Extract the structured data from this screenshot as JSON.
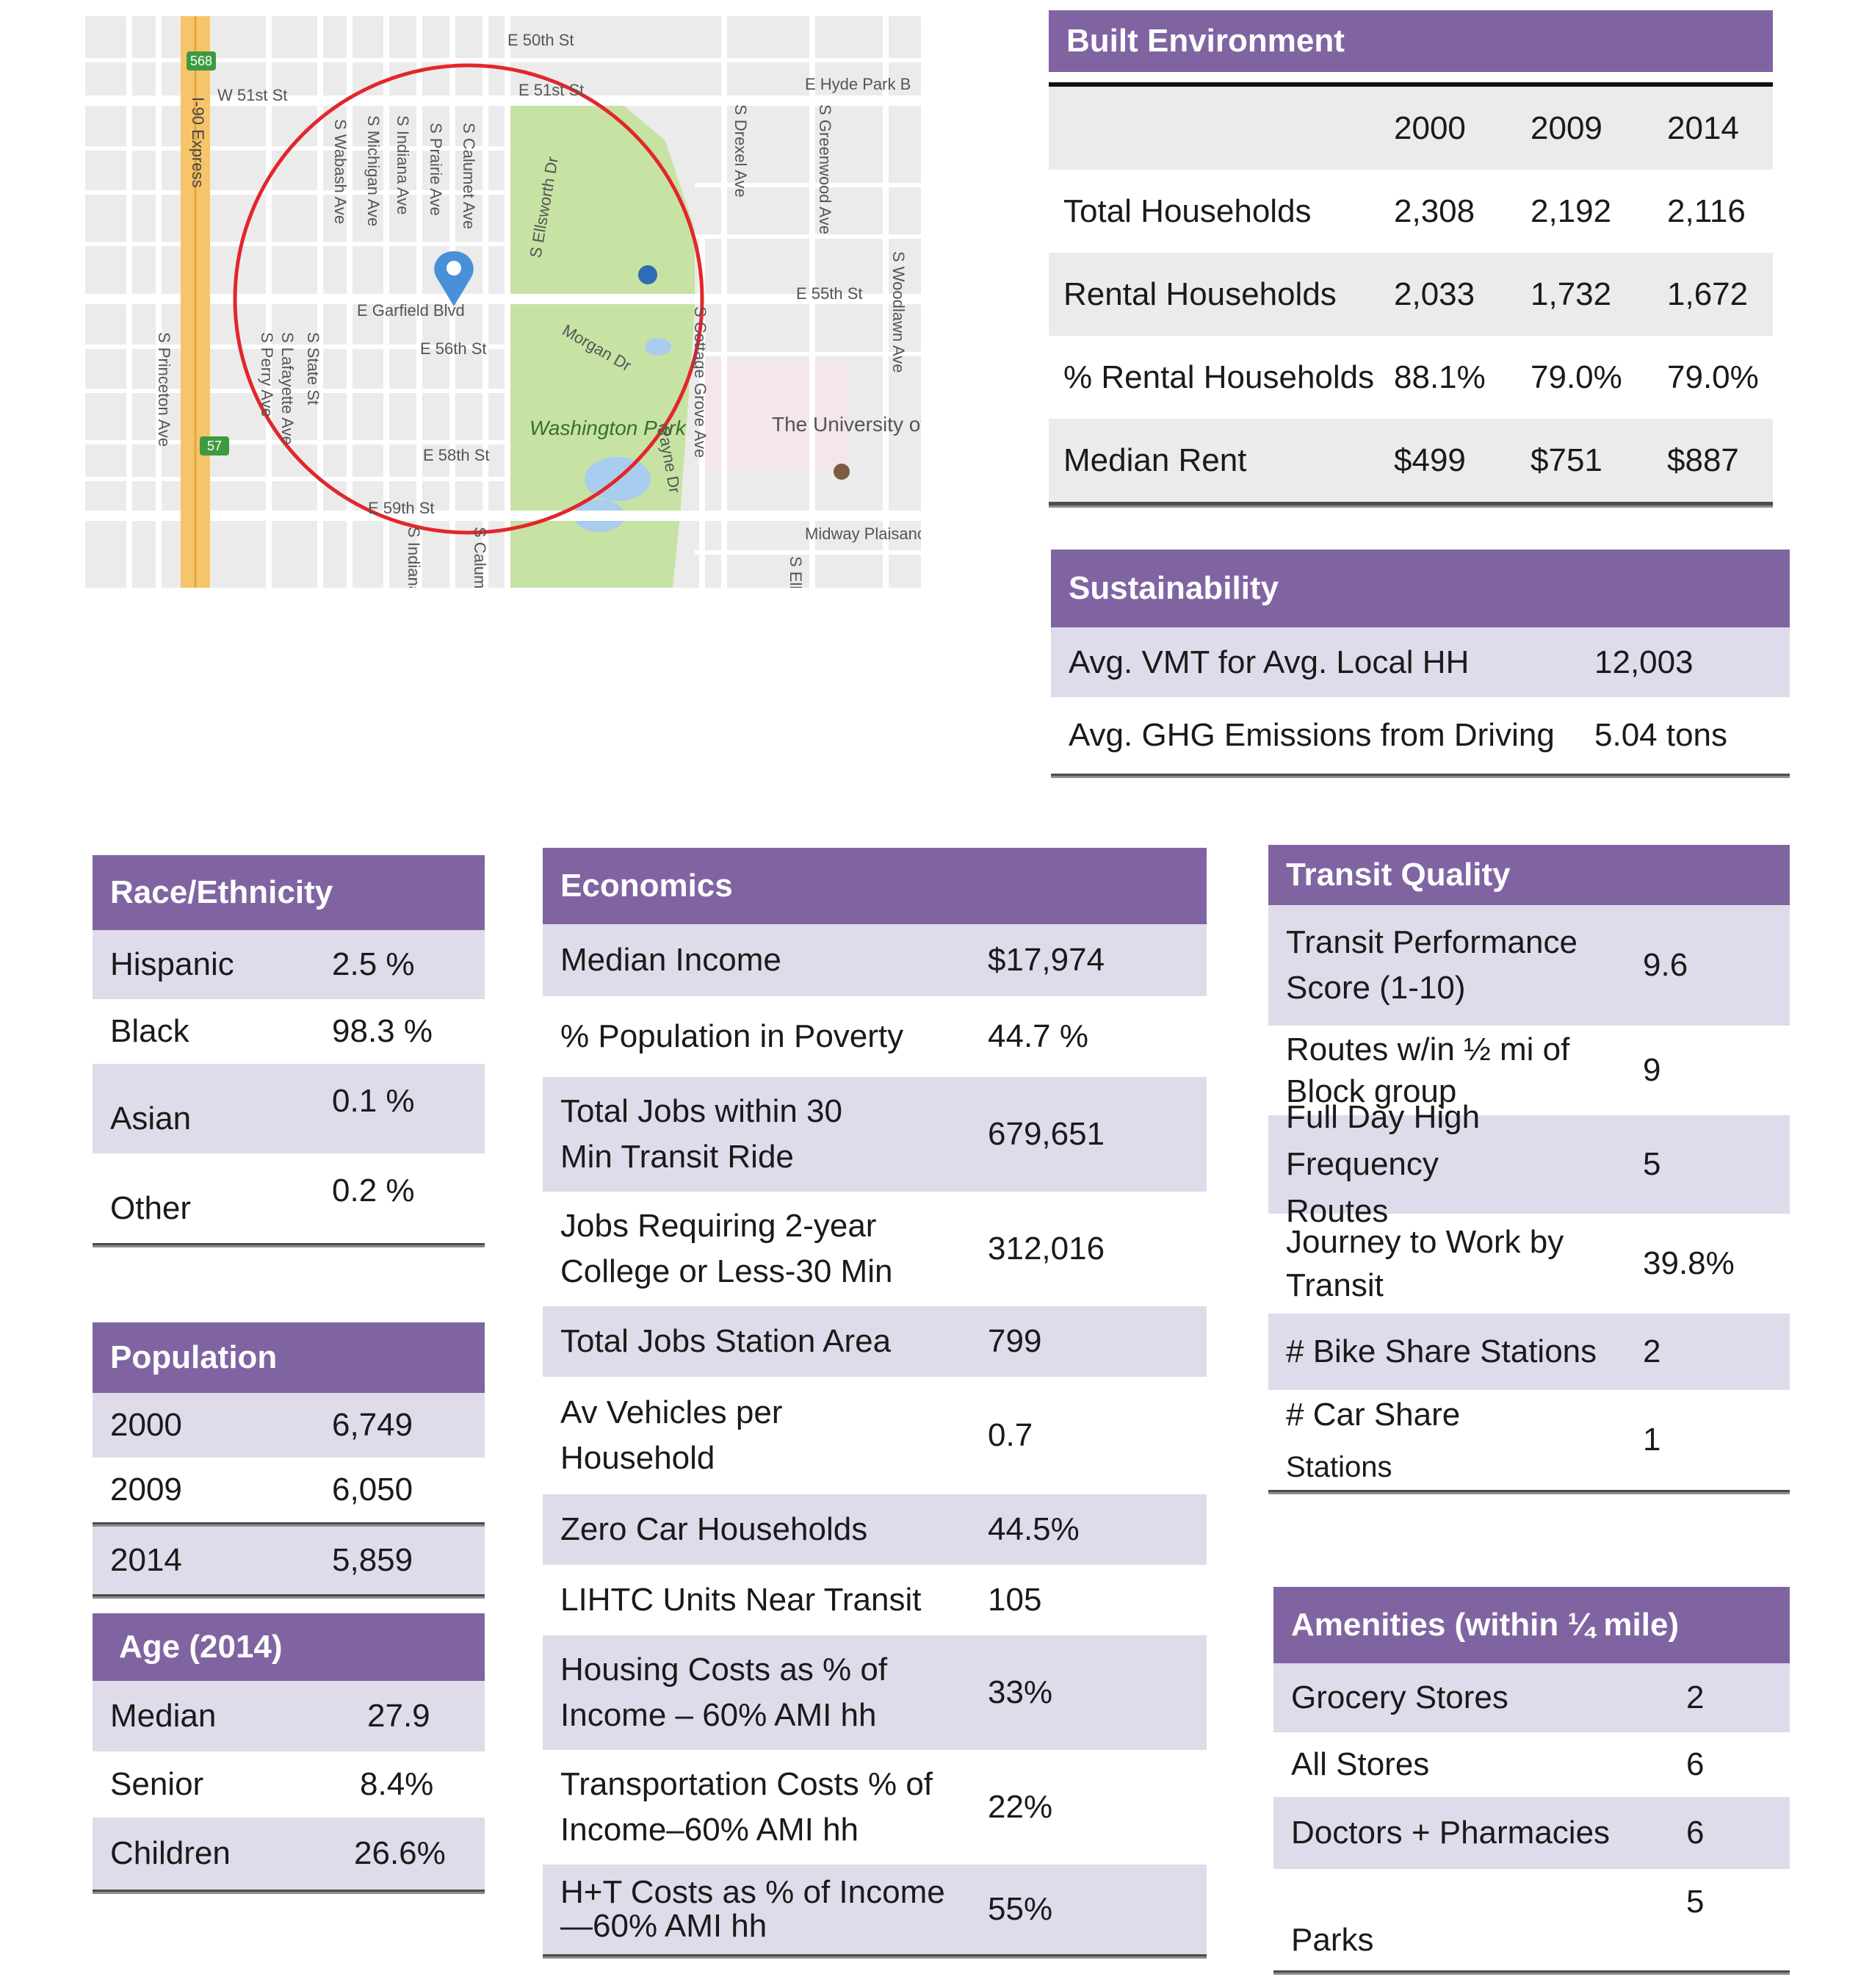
{
  "map": {
    "labels": [
      "568",
      "57",
      "I-90 Express",
      "W 51st St",
      "E 50th St",
      "E 51st St",
      "E Hyde Park B",
      "S Wabash Ave",
      "S Michigan Ave",
      "S Indiana Ave",
      "S Prairie Ave",
      "S Calumet Ave",
      "S Ellsworth Dr",
      "S Drexel Ave",
      "S Greenwood Ave",
      "S Woodlawn Ave",
      "E Garfield Blvd",
      "E 55th St",
      "E 56th St",
      "Morgan Dr",
      "S Cottage Grove Ave",
      "S Princeton Ave",
      "S State St",
      "S Lafayette Ave",
      "S Perry Ave",
      "E 58th St",
      "Washington Park",
      "Payne Dr",
      "The University of Chicago",
      "E 59th St",
      "S Indiana",
      "S Calum",
      "Midway Plaisance",
      "S Elli"
    ]
  },
  "built_environment": {
    "title": "Built Environment",
    "years": [
      "2000",
      "2009",
      "2014"
    ],
    "rows": [
      {
        "label": "Total Households",
        "v": [
          "2,308",
          "2,192",
          "2,116"
        ]
      },
      {
        "label": "Rental Households",
        "v": [
          "2,033",
          "1,732",
          "1,672"
        ]
      },
      {
        "label": "% Rental Households",
        "v": [
          "88.1%",
          "79.0%",
          "79.0%"
        ]
      },
      {
        "label": "Median Rent",
        "v": [
          "$499",
          "$751",
          "$887"
        ]
      }
    ]
  },
  "sustainability": {
    "title": "Sustainability",
    "rows": [
      {
        "label": "Avg. VMT  for Avg. Local HH",
        "value": "12,003"
      },
      {
        "label": "Avg. GHG Emissions from Driving",
        "value": "5.04 tons"
      }
    ]
  },
  "race": {
    "title": "Race/Ethnicity",
    "rows": [
      {
        "label": "Hispanic",
        "value": "2.5 %"
      },
      {
        "label": "Black",
        "value": "98.3 %"
      },
      {
        "label": "Asian",
        "value": "0.1 %"
      },
      {
        "label": "Other",
        "value": "0.2 %"
      }
    ]
  },
  "population": {
    "title": "Population",
    "rows": [
      {
        "label": "2000",
        "value": "6,749"
      },
      {
        "label": "2009",
        "value": "6,050"
      },
      {
        "label": "2014",
        "value": "5,859"
      }
    ]
  },
  "age": {
    "title": "Age (2014)",
    "rows": [
      {
        "label": "Median",
        "value": "27.9"
      },
      {
        "label": "Senior",
        "value": "8.4%"
      },
      {
        "label": "Children",
        "value": "26.6%"
      }
    ]
  },
  "economics": {
    "title": "Economics",
    "rows": [
      {
        "label": "Median Income",
        "value": "$17,974"
      },
      {
        "label": "% Population in Poverty",
        "value": "44.7 %"
      },
      {
        "label": "Total Jobs within 30 Min Transit Ride",
        "value": "679,651"
      },
      {
        "label": "Jobs Requiring 2-year College or Less-30 Min",
        "value": "312,016"
      },
      {
        "label": "Total Jobs Station Area",
        "value": "799"
      },
      {
        "label": "Av Vehicles per Household",
        "value": "0.7"
      },
      {
        "label": "Zero Car Households",
        "value": "44.5%"
      },
      {
        "label": "LIHTC Units Near Transit",
        "value": "105"
      },
      {
        "label": "Housing Costs as % of Income – 60% AMI hh",
        "value": "33%"
      },
      {
        "label": "Transportation Costs % of Income–60% AMI hh",
        "value": "22%"
      },
      {
        "label": "H+T Costs as % of Income—60% AMI hh",
        "value": "55%"
      }
    ]
  },
  "transit": {
    "title": "Transit Quality",
    "rows": [
      {
        "label": "Transit Performance Score (1-10)",
        "value": "9.6"
      },
      {
        "label": "Routes w/in ½ mi of Block group",
        "value": "9"
      },
      {
        "label": "Full Day High Frequency Routes",
        "value": "5"
      },
      {
        "label": "Journey to Work by Transit",
        "value": "39.8%"
      },
      {
        "label": "# Bike Share Stations",
        "value": "2"
      },
      {
        "label": "# Car Share",
        "label2": "Stations",
        "value": "1"
      }
    ]
  },
  "amenities": {
    "title": "Amenities (within ¼ mile)",
    "rows": [
      {
        "label": "Grocery Stores",
        "value": "2"
      },
      {
        "label": "All Stores",
        "value": "6"
      },
      {
        "label": "Doctors + Pharmacies",
        "value": "6"
      },
      {
        "label": "Parks",
        "value": "5"
      }
    ]
  },
  "colors": {
    "header": "#8064a2",
    "shade": "#e0dbea",
    "grey": "#ebebeb",
    "map_circle": "#e3262b",
    "park": "#c6e3a4"
  }
}
